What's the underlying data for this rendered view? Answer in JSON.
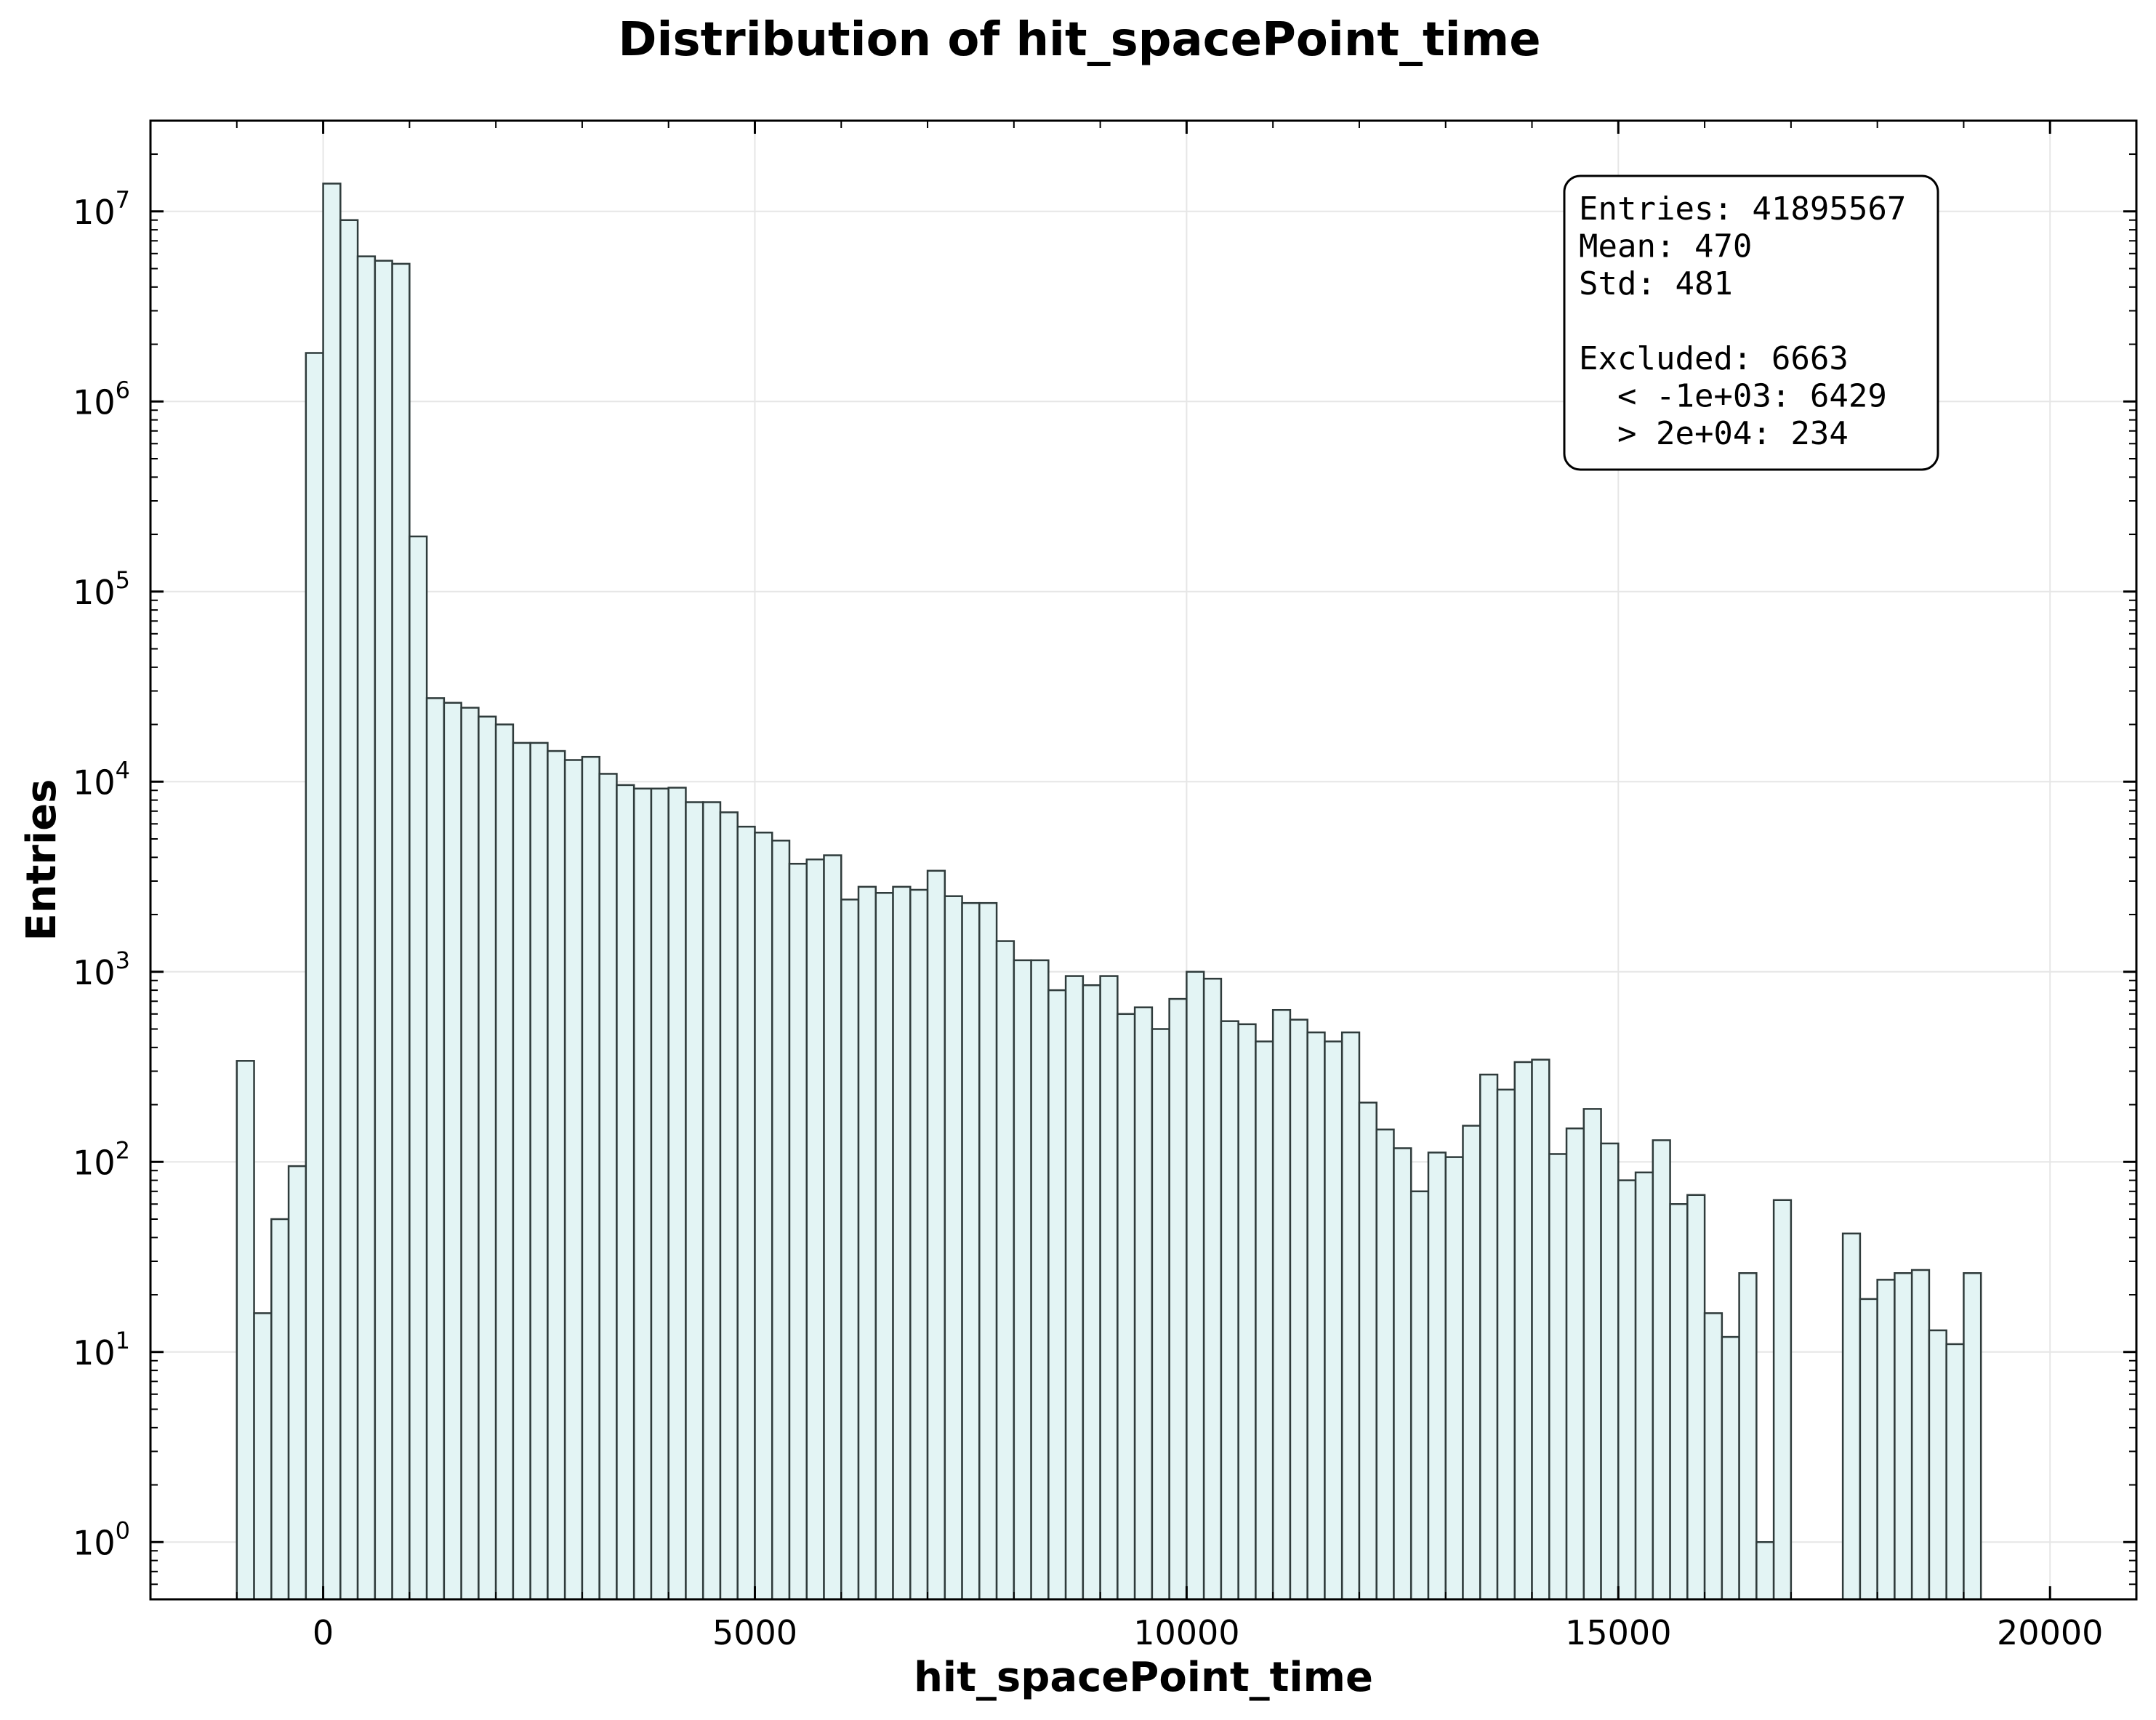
{
  "chart_data": {
    "type": "bar",
    "title": "Distribution of hit_spacePoint_time",
    "xlabel": "hit_spacePoint_time",
    "ylabel": "Entries",
    "xlim": [
      -2000,
      21000
    ],
    "ylim": [
      0.5,
      30000000
    ],
    "yscale": "log",
    "grid": true,
    "x_ticks": [
      {
        "value": 0,
        "label": "0"
      },
      {
        "value": 5000,
        "label": "5000"
      },
      {
        "value": 10000,
        "label": "10000"
      },
      {
        "value": 15000,
        "label": "15000"
      },
      {
        "value": 20000,
        "label": "20000"
      }
    ],
    "y_ticks": [
      {
        "value": 1,
        "base": "10",
        "exp": "0"
      },
      {
        "value": 10,
        "base": "10",
        "exp": "1"
      },
      {
        "value": 100,
        "base": "10",
        "exp": "2"
      },
      {
        "value": 1000,
        "base": "10",
        "exp": "3"
      },
      {
        "value": 10000,
        "base": "10",
        "exp": "4"
      },
      {
        "value": 100000,
        "base": "10",
        "exp": "5"
      },
      {
        "value": 1000000,
        "base": "10",
        "exp": "6"
      },
      {
        "value": 10000000,
        "base": "10",
        "exp": "7"
      }
    ],
    "bin_start": -1000,
    "bin_width": 200,
    "values": [
      340,
      16,
      50,
      95,
      1800000,
      14000000,
      9000000,
      5800000,
      5500000,
      5300000,
      195000,
      27500,
      26000,
      24500,
      22000,
      20000,
      16000,
      16000,
      14500,
      13000,
      13500,
      11000,
      9600,
      9200,
      9200,
      9300,
      7800,
      7800,
      6900,
      5800,
      5400,
      4900,
      3700,
      3900,
      4100,
      2400,
      2800,
      2600,
      2800,
      2700,
      3400,
      2500,
      2300,
      2300,
      1450,
      1150,
      1150,
      800,
      950,
      850,
      950,
      600,
      650,
      500,
      720,
      1000,
      920,
      550,
      530,
      430,
      630,
      560,
      480,
      430,
      480,
      205,
      148,
      118,
      70,
      112,
      106,
      155,
      288,
      240,
      335,
      345,
      110,
      150,
      190,
      125,
      80,
      88,
      130,
      60,
      67,
      16,
      12,
      26,
      1,
      63,
      0,
      0,
      0,
      42,
      19,
      24,
      26,
      27,
      13,
      11,
      26
    ],
    "fill_color": "#e3f4f4",
    "edge_color": "#2f3b3b",
    "stats_box": {
      "lines": [
        "Entries: 41895567",
        "Mean: 470",
        "Std: 481",
        "",
        "Excluded: 6663",
        "  < -1e+03: 6429",
        "  > 2e+04: 234"
      ],
      "placement": "top-right"
    }
  }
}
